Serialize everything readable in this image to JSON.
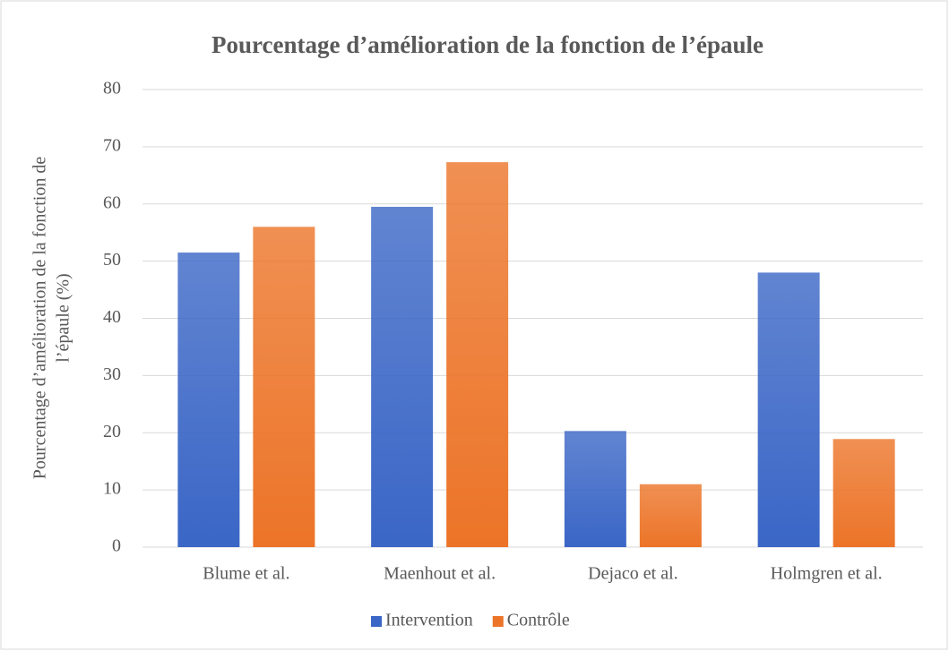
{
  "chart_data": {
    "type": "bar",
    "title": "Pourcentage d’amélioration de la fonction de l’épaule",
    "y_label": [
      "Pourcentage d’amélioration de la fonction de",
      "l’épaule (%)"
    ],
    "categories": [
      "Blume et al.",
      "Maenhout et al.",
      "Dejaco et al.",
      "Holmgren et al."
    ],
    "series": [
      {
        "name": "Intervention",
        "color": "#3a66c6",
        "values": [
          51.5,
          59.5,
          20.3,
          48.0
        ]
      },
      {
        "name": "Contrôle",
        "color": "#ec7428",
        "values": [
          56.0,
          67.3,
          11.0,
          18.9
        ]
      }
    ],
    "ylim": [
      0,
      80
    ],
    "yticks": [
      0,
      10,
      20,
      30,
      40,
      50,
      60,
      70,
      80
    ],
    "grid": true,
    "legend": "bottom"
  }
}
